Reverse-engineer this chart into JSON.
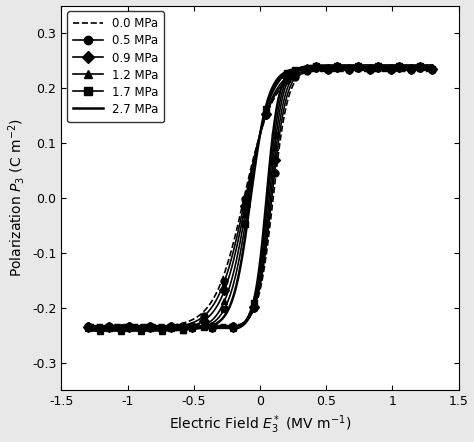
{
  "xlabel": "Electric Field $E_3^*$ (MV m$^{-1}$)",
  "ylabel": "Polarization $P_3$ (C m$^{-2}$)",
  "xlim": [
    -1.5,
    1.5
  ],
  "ylim": [
    -0.35,
    0.35
  ],
  "xticks": [
    -1.5,
    -1.0,
    -0.5,
    0.0,
    0.5,
    1.0,
    1.5
  ],
  "yticks": [
    -0.3,
    -0.2,
    -0.1,
    0.0,
    0.1,
    0.2,
    0.3
  ],
  "legend_labels": [
    "0.0 MPa",
    "0.5 MPa",
    "0.9 MPa",
    "1.2 MPa",
    "1.7 MPa",
    "2.7 MPa"
  ],
  "line_styles": [
    "--",
    "-",
    "-",
    "-",
    "-",
    "-"
  ],
  "markers": [
    "None",
    "o",
    "D",
    "^",
    "s",
    "None"
  ],
  "line_widths": [
    1.2,
    1.2,
    1.2,
    1.2,
    1.2,
    1.8
  ],
  "background_color": "#e8e8e8",
  "plot_bg": "#ffffff",
  "curve_params": [
    {
      "P_sat": 0.235,
      "E_c_up": 0.1,
      "E_c_dn": -0.12,
      "steep_up": 9.0,
      "steep_dn": 4.5
    },
    {
      "P_sat": 0.237,
      "E_c_up": 0.09,
      "E_c_dn": -0.11,
      "steep_up": 9.2,
      "steep_dn": 4.8
    },
    {
      "P_sat": 0.239,
      "E_c_up": 0.08,
      "E_c_dn": -0.1,
      "steep_up": 9.5,
      "steep_dn": 5.2
    },
    {
      "P_sat": 0.242,
      "E_c_up": 0.07,
      "E_c_dn": -0.09,
      "steep_up": 9.8,
      "steep_dn": 5.8
    },
    {
      "P_sat": 0.24,
      "E_c_up": 0.06,
      "E_c_dn": -0.08,
      "steep_up": 10.2,
      "steep_dn": 6.5
    },
    {
      "P_sat": 0.238,
      "E_c_up": 0.05,
      "E_c_dn": -0.07,
      "steep_up": 11.0,
      "steep_dn": 7.5
    }
  ]
}
